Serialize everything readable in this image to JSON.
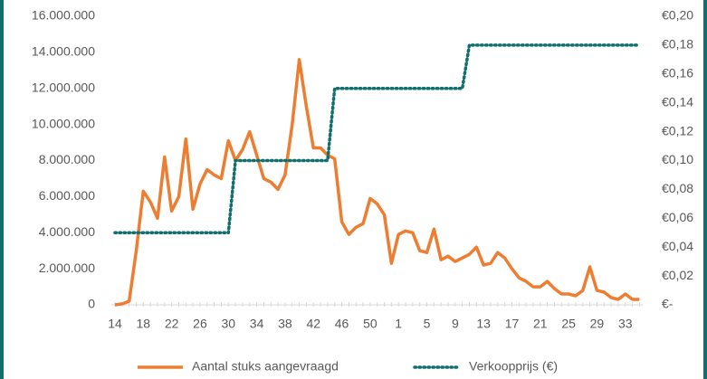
{
  "chart_data": {
    "type": "line",
    "categories": [
      "14",
      null,
      null,
      null,
      "18",
      null,
      null,
      null,
      "22",
      null,
      null,
      null,
      "26",
      null,
      null,
      null,
      "30",
      null,
      null,
      null,
      "34",
      null,
      null,
      null,
      "38",
      null,
      null,
      null,
      "42",
      null,
      null,
      null,
      "46",
      null,
      null,
      null,
      "50",
      null,
      null,
      null,
      "1",
      null,
      null,
      null,
      "5",
      null,
      null,
      null,
      "9",
      null,
      null,
      null,
      "13",
      null,
      null,
      null,
      "17",
      null,
      null,
      null,
      "21",
      null,
      null,
      null,
      "25",
      null,
      null,
      null,
      "29",
      null,
      null,
      null,
      "33",
      null,
      null
    ],
    "series": [
      {
        "name": "Aantal stuks aangevraagd",
        "color": "#ed7d31",
        "axis": "y",
        "values": [
          0,
          50000,
          200000,
          3000000,
          6300000,
          5700000,
          4800000,
          8200000,
          5200000,
          6000000,
          9200000,
          5300000,
          6700000,
          7500000,
          7200000,
          7000000,
          9100000,
          8000000,
          8600000,
          9600000,
          8300000,
          7000000,
          6800000,
          6400000,
          7200000,
          10000000,
          13600000,
          11000000,
          8700000,
          8700000,
          8300000,
          8100000,
          4600000,
          3900000,
          4300000,
          4500000,
          5900000,
          5600000,
          5000000,
          2300000,
          3900000,
          4100000,
          4000000,
          3000000,
          2900000,
          4200000,
          2500000,
          2700000,
          2400000,
          2600000,
          2800000,
          3200000,
          2200000,
          2300000,
          2900000,
          2600000,
          2000000,
          1500000,
          1300000,
          1000000,
          1000000,
          1300000,
          900000,
          600000,
          600000,
          500000,
          800000,
          2100000,
          800000,
          700000,
          400000,
          300000,
          600000,
          300000,
          300000
        ]
      },
      {
        "name": "Verkoopprijs (€)",
        "color": "#11706e",
        "axis": "y2",
        "dotted": true,
        "values": [
          0.05,
          0.05,
          0.05,
          0.05,
          0.05,
          0.05,
          0.05,
          0.05,
          0.05,
          0.05,
          0.05,
          0.05,
          0.05,
          0.05,
          0.05,
          0.05,
          0.05,
          0.1,
          0.1,
          0.1,
          0.1,
          0.1,
          0.1,
          0.1,
          0.1,
          0.1,
          0.1,
          0.1,
          0.1,
          0.1,
          0.1,
          0.15,
          0.15,
          0.15,
          0.15,
          0.15,
          0.15,
          0.15,
          0.15,
          0.15,
          0.15,
          0.15,
          0.15,
          0.15,
          0.15,
          0.15,
          0.15,
          0.15,
          0.15,
          0.15,
          0.18,
          0.18,
          0.18,
          0.18,
          0.18,
          0.18,
          0.18,
          0.18,
          0.18,
          0.18,
          0.18,
          0.18,
          0.18,
          0.18,
          0.18,
          0.18,
          0.18,
          0.18,
          0.18,
          0.18,
          0.18,
          0.18,
          0.18,
          0.18,
          0.18
        ]
      }
    ],
    "ylim": [
      0,
      16000000
    ],
    "yticks": [
      0,
      {
        "value": 2000000,
        "label": "2.000.000"
      },
      {
        "value": 4000000,
        "label": "4.000.000"
      },
      {
        "value": 6000000,
        "label": "6.000.000"
      },
      {
        "value": 8000000,
        "label": "8.000.000"
      },
      {
        "value": 10000000,
        "label": "10.000.000"
      },
      {
        "value": 12000000,
        "label": "12.000.000"
      },
      {
        "value": 14000000,
        "label": "14.000.000"
      },
      {
        "value": 16000000,
        "label": "16.000.000"
      }
    ],
    "y2lim": [
      0,
      0.2
    ],
    "y2ticks": [
      {
        "value": 0,
        "label": "€-"
      },
      {
        "value": 0.02,
        "label": "€0,02"
      },
      {
        "value": 0.04,
        "label": "€0,04"
      },
      {
        "value": 0.06,
        "label": "€0,06"
      },
      {
        "value": 0.08,
        "label": "€0,08"
      },
      {
        "value": 0.1,
        "label": "€0,10"
      },
      {
        "value": 0.12,
        "label": "€0,12"
      },
      {
        "value": 0.14,
        "label": "€0,14"
      },
      {
        "value": 0.16,
        "label": "€0,16"
      },
      {
        "value": 0.18,
        "label": "€0,18"
      },
      {
        "value": 0.2,
        "label": "€0,20"
      }
    ],
    "legend": "bottom"
  }
}
